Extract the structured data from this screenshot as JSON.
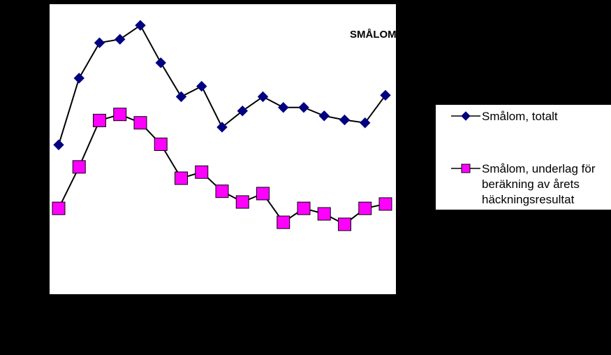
{
  "chart_data": {
    "type": "line",
    "title": "SMÅLOM",
    "xlabel": "",
    "ylabel": "",
    "x": [
      1,
      2,
      3,
      4,
      5,
      6,
      7,
      8,
      9,
      10,
      11,
      12,
      13,
      14,
      15,
      16,
      17
    ],
    "ylim": [
      0,
      100
    ],
    "grid": false,
    "legend_position": "right",
    "series": [
      {
        "name": "Smålom, totalt",
        "marker": "diamond",
        "color": "#000080",
        "line_color": "#000000",
        "values": [
          51.5,
          74.5,
          86.7,
          87.9,
          92.7,
          79.8,
          68.1,
          71.7,
          57.6,
          63.2,
          68.1,
          64.4,
          64.4,
          61.5,
          60.1,
          59.1,
          68.6
        ]
      },
      {
        "name": "Smålom, underlag för beräkning av årets häckningsresultat",
        "marker": "square",
        "color": "#ff00ff",
        "line_color": "#000000",
        "values": [
          29.6,
          43.9,
          59.9,
          62.0,
          59.1,
          51.7,
          40.0,
          42.1,
          35.5,
          31.8,
          34.7,
          24.8,
          29.6,
          27.7,
          24.1,
          29.6,
          31.1
        ]
      }
    ]
  },
  "legend": {
    "entries": [
      "Smålom, totalt",
      "Smålom, underlag för\nberäkning av årets\nhäckningsresultat"
    ]
  }
}
